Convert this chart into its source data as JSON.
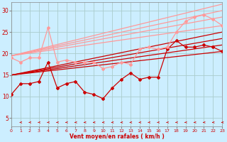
{
  "bg_color": "#cceeff",
  "grid_color": "#aacccc",
  "xlabel": "Vent moyen/en rafales ( km/h )",
  "xlim": [
    0,
    23
  ],
  "ylim": [
    3,
    32
  ],
  "yticks": [
    5,
    10,
    15,
    20,
    25,
    30
  ],
  "xticks": [
    0,
    1,
    2,
    3,
    4,
    5,
    6,
    7,
    8,
    9,
    10,
    11,
    12,
    13,
    14,
    15,
    16,
    17,
    18,
    19,
    20,
    21,
    22,
    23
  ],
  "trend_lines_dark": [
    {
      "x0": 0,
      "y0": 15.0,
      "x1": 23,
      "y1": 20.5
    },
    {
      "x0": 0,
      "y0": 15.0,
      "x1": 23,
      "y1": 22.0
    },
    {
      "x0": 0,
      "y0": 15.0,
      "x1": 23,
      "y1": 23.5
    },
    {
      "x0": 0,
      "y0": 15.0,
      "x1": 23,
      "y1": 25.0
    }
  ],
  "trend_lines_light": [
    {
      "x0": 0,
      "y0": 19.5,
      "x1": 23,
      "y1": 26.5
    },
    {
      "x0": 0,
      "y0": 19.5,
      "x1": 23,
      "y1": 28.5
    },
    {
      "x0": 0,
      "y0": 19.5,
      "x1": 23,
      "y1": 30.0
    },
    {
      "x0": 0,
      "y0": 19.5,
      "x1": 23,
      "y1": 31.5
    }
  ],
  "line_dark_marker": {
    "x": [
      0,
      1,
      2,
      3,
      4,
      5,
      6,
      7,
      8,
      9,
      10,
      11,
      12,
      13,
      14,
      15,
      16,
      17,
      18,
      19,
      20,
      21,
      22,
      23
    ],
    "y": [
      10.5,
      13.0,
      13.0,
      13.5,
      18.0,
      12.0,
      13.0,
      13.5,
      11.0,
      10.5,
      9.5,
      12.0,
      14.0,
      15.5,
      14.0,
      14.5,
      14.5,
      21.0,
      23.0,
      21.5,
      21.5,
      22.0,
      21.5,
      20.5
    ]
  },
  "line_light_marker": {
    "x": [
      0,
      1,
      2,
      3,
      4,
      5,
      6,
      7,
      8,
      9,
      10,
      11,
      12,
      13,
      14,
      15,
      16,
      17,
      18,
      19,
      20,
      21,
      22,
      23
    ],
    "y": [
      19.0,
      18.0,
      19.0,
      19.0,
      26.0,
      18.0,
      18.5,
      18.0,
      18.0,
      18.0,
      16.5,
      17.0,
      18.0,
      17.5,
      21.0,
      21.5,
      21.0,
      21.5,
      25.0,
      27.5,
      28.5,
      29.0,
      28.0,
      26.5
    ]
  },
  "dark_color": "#cc0000",
  "light_color": "#ff9999",
  "arrow_color": "#cc0000",
  "marker": "D",
  "ms": 2.0
}
